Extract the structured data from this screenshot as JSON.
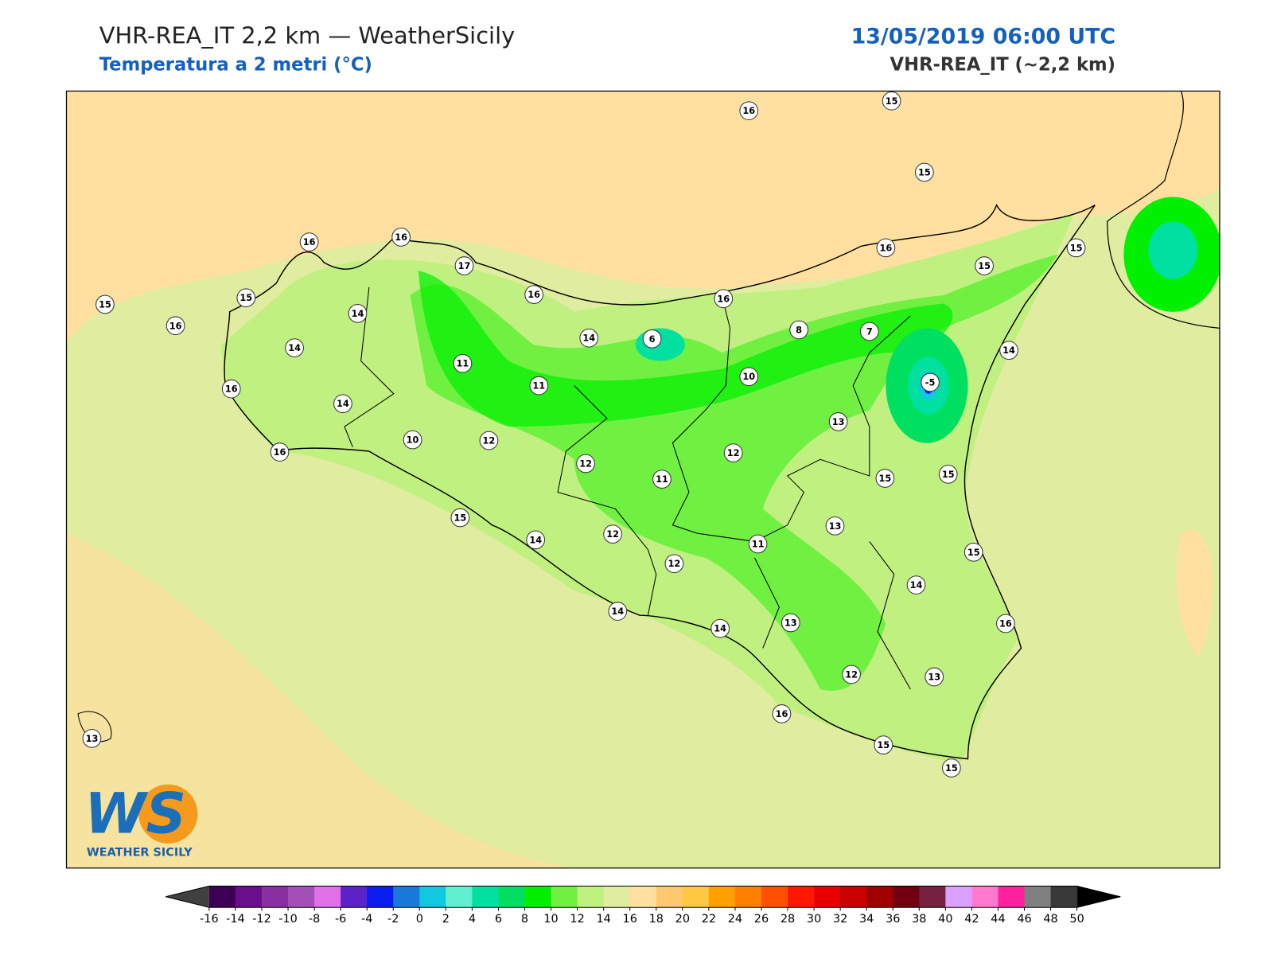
{
  "header": {
    "title": "VHR-REA_IT 2,2 km — WeatherSicily",
    "subtitle": "Temperatura a 2 metri (°C)",
    "datetime": "13/05/2019 06:00 UTC",
    "model": "VHR-REA_IT (~2,2 km)"
  },
  "stations": [
    16,
    15,
    15,
    16,
    16,
    17,
    15,
    15,
    16,
    14,
    14,
    16,
    14,
    6,
    16,
    8,
    7,
    16,
    15,
    15,
    14,
    -5,
    11,
    11,
    10,
    16,
    14,
    10,
    12,
    13,
    16,
    12,
    12,
    11,
    15,
    15,
    15,
    14,
    12,
    13,
    11,
    12,
    15,
    14,
    14,
    14,
    13,
    16,
    12,
    13,
    16,
    15,
    15,
    13
  ],
  "logo": {
    "mark": "WS",
    "name": "WEATHER SICILY"
  },
  "colorbar": {
    "ticks": [
      -16,
      -14,
      -12,
      -10,
      -8,
      -6,
      -4,
      -2,
      0,
      2,
      4,
      6,
      8,
      10,
      12,
      14,
      16,
      18,
      20,
      22,
      24,
      26,
      28,
      30,
      32,
      34,
      36,
      38,
      40,
      42,
      44,
      46,
      48,
      50
    ],
    "colors": [
      "#3d0053",
      "#6a0f8c",
      "#8a2fa0",
      "#a44fb8",
      "#e070e8",
      "#5b22c8",
      "#0a1ef0",
      "#1a78d8",
      "#10c8e0",
      "#60f0d0",
      "#00e0a0",
      "#00e060",
      "#00f000",
      "#70f040",
      "#c0f080",
      "#e0eca0",
      "#ffe0a0",
      "#ffc870",
      "#ffc840",
      "#ffa000",
      "#ff8000",
      "#ff5000",
      "#ff1800",
      "#e80000",
      "#c80000",
      "#a00000",
      "#700010",
      "#782040",
      "#d8a0ff",
      "#ff78d0",
      "#ff20a0",
      "#808080",
      "#383838"
    ],
    "under_color": "#404040",
    "over_color": "#000000"
  }
}
